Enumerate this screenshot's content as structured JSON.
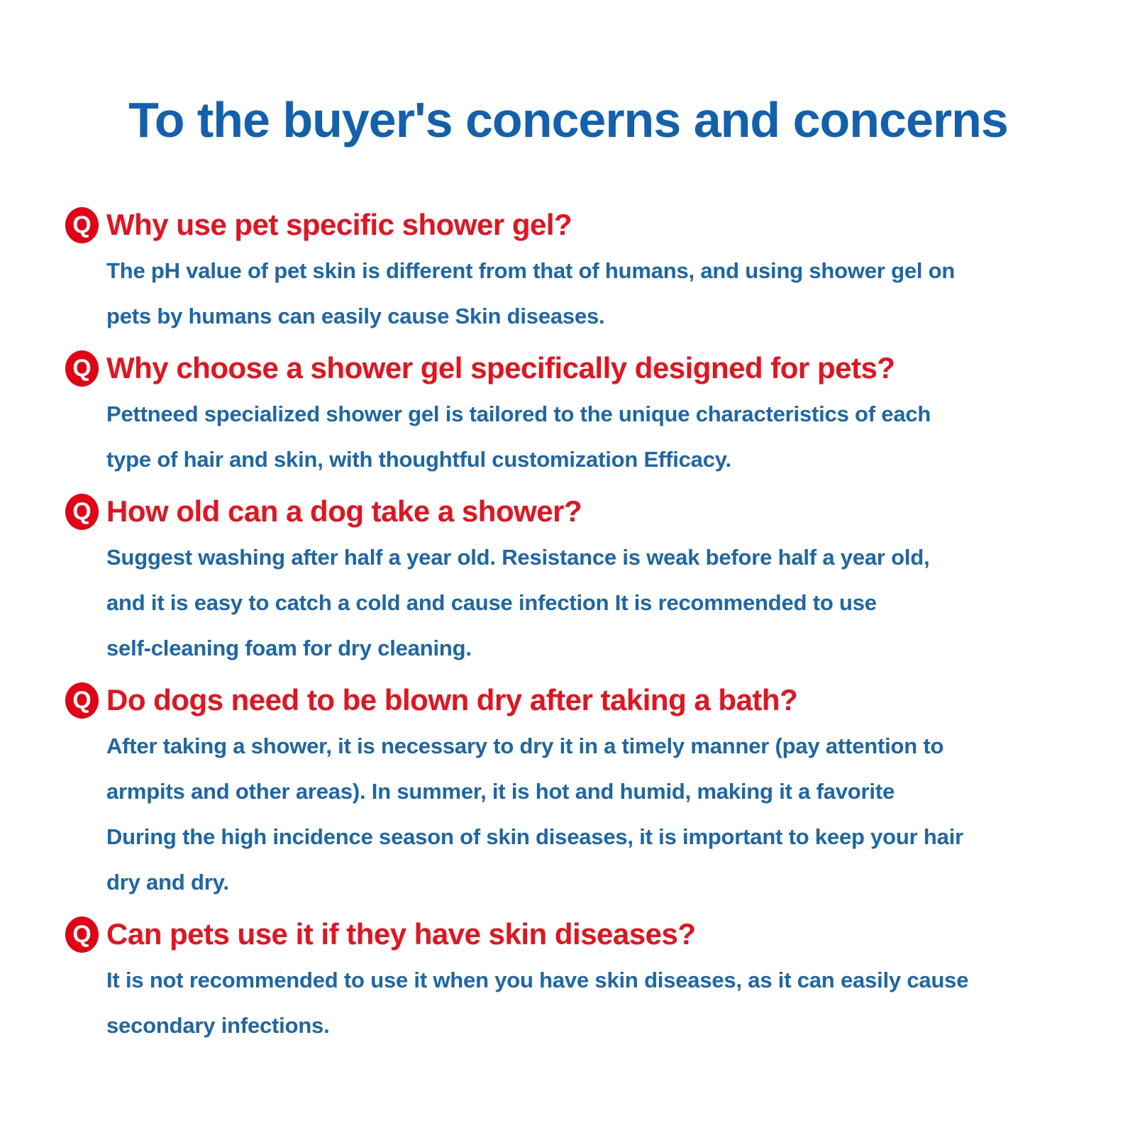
{
  "page": {
    "title": "To the buyer's concerns and concerns"
  },
  "badge_letter": "Q",
  "colors": {
    "title_blue": "#1161ae",
    "question_red": "#e8121e",
    "answer_blue": "#1a67a9",
    "badge_red": "#e60014",
    "badge_letter_white": "#ffffff",
    "background": "#ffffff"
  },
  "faq": [
    {
      "question": "Why use pet specific shower gel?",
      "answer_lines": [
        "The pH value of pet skin is different from that of humans, and using shower gel on",
        "pets by humans can easily cause Skin diseases."
      ]
    },
    {
      "question": "Why choose a shower gel specifically designed for pets?",
      "answer_lines": [
        "Pettneed specialized shower gel is tailored to the unique characteristics of each",
        "type of hair and skin, with thoughtful customization Efficacy."
      ]
    },
    {
      "question": "How old can a dog take a shower?",
      "answer_lines": [
        "Suggest washing after half a year old. Resistance is weak before half a year old,",
        "and it is easy to catch a cold and cause infection It is recommended to use",
        "self-cleaning foam for dry cleaning."
      ]
    },
    {
      "question": "Do dogs need to be blown dry after taking a bath?",
      "answer_lines": [
        "After taking a shower, it is necessary to dry it in a timely manner (pay attention to",
        "armpits and other areas). In summer, it is hot and humid, making it a favorite",
        "During the high incidence season of skin diseases, it is important to keep your hair",
        "dry and dry."
      ]
    },
    {
      "question": "Can pets use it if they have skin diseases?",
      "answer_lines": [
        "It is not recommended to use it when you have skin diseases, as it can easily cause",
        "secondary infections."
      ]
    }
  ]
}
